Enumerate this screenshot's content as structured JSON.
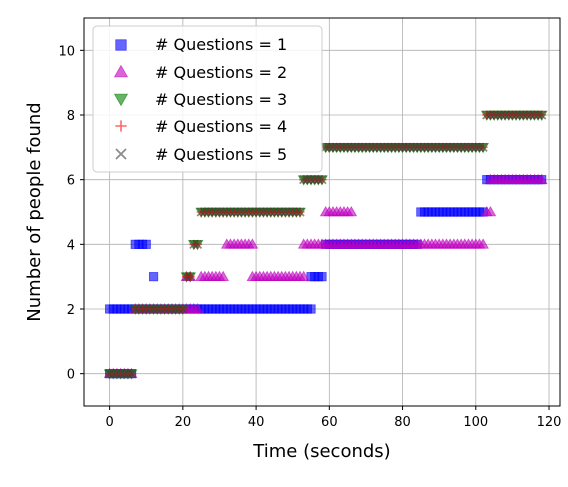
{
  "chart_data": {
    "type": "scatter",
    "title": "",
    "xlabel": "Time (seconds)",
    "ylabel": "Number of people found",
    "xlim": [
      -7,
      123
    ],
    "ylim": [
      -1,
      11
    ],
    "xticks": [
      0,
      20,
      40,
      60,
      80,
      100,
      120
    ],
    "yticks": [
      0,
      2,
      4,
      6,
      8,
      10
    ],
    "grid": true,
    "legend_position": "top-left",
    "series": [
      {
        "name": "# Questions = 1",
        "marker": "square",
        "color": "#0000ff",
        "segments": [
          {
            "x_start": 0,
            "x_end": 6,
            "y": 0
          },
          {
            "x_start": 0,
            "x_end": 55,
            "y": 2
          },
          {
            "x_start": 7,
            "x_end": 10,
            "y": 4
          },
          {
            "x_start": 12,
            "x_end": 12,
            "y": 3
          },
          {
            "x_start": 55,
            "x_end": 58,
            "y": 3
          },
          {
            "x_start": 59,
            "x_end": 84,
            "y": 4
          },
          {
            "x_start": 85,
            "x_end": 102,
            "y": 5
          },
          {
            "x_start": 103,
            "x_end": 118,
            "y": 6
          }
        ]
      },
      {
        "name": "# Questions = 2",
        "marker": "triangle-up",
        "color": "#bf00bf",
        "segments": [
          {
            "x_start": 0,
            "x_end": 6,
            "y": 0
          },
          {
            "x_start": 7,
            "x_end": 24,
            "y": 2
          },
          {
            "x_start": 21,
            "x_end": 22,
            "y": 3
          },
          {
            "x_start": 25,
            "x_end": 31,
            "y": 3
          },
          {
            "x_start": 32,
            "x_end": 39,
            "y": 4
          },
          {
            "x_start": 39,
            "x_end": 53,
            "y": 3
          },
          {
            "x_start": 53,
            "x_end": 59,
            "y": 4
          },
          {
            "x_start": 59,
            "x_end": 66,
            "y": 5
          },
          {
            "x_start": 60,
            "x_end": 102,
            "y": 4
          },
          {
            "x_start": 103,
            "x_end": 104,
            "y": 5
          },
          {
            "x_start": 104,
            "x_end": 118,
            "y": 6
          }
        ]
      },
      {
        "name": "# Questions = 3",
        "marker": "triangle-down",
        "color": "#008000",
        "segments": [
          {
            "x_start": 0,
            "x_end": 6,
            "y": 0
          },
          {
            "x_start": 7,
            "x_end": 20,
            "y": 2
          },
          {
            "x_start": 21,
            "x_end": 22,
            "y": 3
          },
          {
            "x_start": 23,
            "x_end": 24,
            "y": 4
          },
          {
            "x_start": 25,
            "x_end": 52,
            "y": 5
          },
          {
            "x_start": 53,
            "x_end": 58,
            "y": 6
          },
          {
            "x_start": 59,
            "x_end": 102,
            "y": 7
          },
          {
            "x_start": 103,
            "x_end": 118,
            "y": 8
          }
        ]
      },
      {
        "name": "# Questions = 4",
        "marker": "plus",
        "color": "#ff0000",
        "segments": [
          {
            "x_start": 0,
            "x_end": 6,
            "y": 0
          },
          {
            "x_start": 7,
            "x_end": 20,
            "y": 2
          },
          {
            "x_start": 21,
            "x_end": 22,
            "y": 3
          },
          {
            "x_start": 23,
            "x_end": 24,
            "y": 4
          },
          {
            "x_start": 25,
            "x_end": 52,
            "y": 5
          },
          {
            "x_start": 53,
            "x_end": 58,
            "y": 6
          },
          {
            "x_start": 59,
            "x_end": 102,
            "y": 7
          },
          {
            "x_start": 103,
            "x_end": 118,
            "y": 8
          }
        ]
      },
      {
        "name": "# Questions = 5",
        "marker": "x",
        "color": "#404040",
        "segments": [
          {
            "x_start": 0,
            "x_end": 6,
            "y": 0
          },
          {
            "x_start": 7,
            "x_end": 20,
            "y": 2
          },
          {
            "x_start": 21,
            "x_end": 22,
            "y": 3
          },
          {
            "x_start": 23,
            "x_end": 24,
            "y": 4
          },
          {
            "x_start": 25,
            "x_end": 52,
            "y": 5
          },
          {
            "x_start": 53,
            "x_end": 58,
            "y": 6
          },
          {
            "x_start": 59,
            "x_end": 102,
            "y": 7
          },
          {
            "x_start": 103,
            "x_end": 118,
            "y": 8
          }
        ]
      }
    ]
  }
}
